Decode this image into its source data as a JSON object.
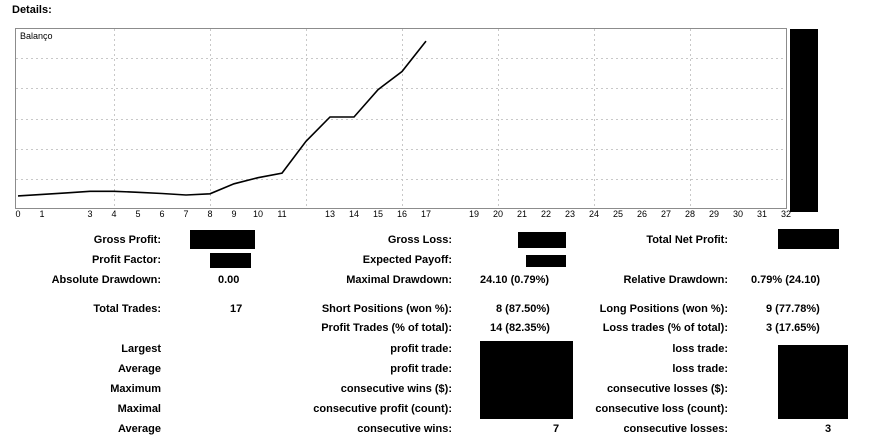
{
  "header": {
    "title": "Details:"
  },
  "chart": {
    "legend": "Balanço",
    "x_ticks": [
      "0",
      "1",
      "3",
      "4",
      "5",
      "6",
      "7",
      "8",
      "9",
      "10",
      "11",
      "13",
      "14",
      "15",
      "16",
      "17",
      "19",
      "20",
      "21",
      "22",
      "23",
      "24",
      "25",
      "26",
      "27",
      "28",
      "29",
      "30",
      "31",
      "32"
    ]
  },
  "chart_data": {
    "type": "line",
    "title": "",
    "legend": [
      "Balanço"
    ],
    "x_label_positions": [
      0,
      1,
      3,
      4,
      5,
      6,
      7,
      8,
      9,
      10,
      11,
      13,
      14,
      15,
      16,
      17,
      19,
      20,
      21,
      22,
      23,
      24,
      25,
      26,
      27,
      28,
      29,
      30,
      31,
      32
    ],
    "xlim": [
      0,
      32
    ],
    "grid": true,
    "series": [
      {
        "name": "Balanço",
        "x": [
          0,
          1,
          2,
          3,
          4,
          5,
          6,
          7,
          8,
          9,
          10,
          11,
          12,
          13,
          14,
          15,
          16,
          17
        ],
        "y": [
          0,
          0.5,
          1,
          1.5,
          1.5,
          1.2,
          0.8,
          0.3,
          0.7,
          4,
          6,
          7.5,
          18,
          26,
          26,
          35,
          41,
          51
        ]
      }
    ],
    "ylim": [
      -3,
      54
    ]
  },
  "stats": {
    "gross_profit_label": "Gross Profit:",
    "profit_factor_label": "Profit Factor:",
    "absolute_drawdown_label": "Absolute Drawdown:",
    "absolute_drawdown_value": "0.00",
    "total_trades_label": "Total Trades:",
    "total_trades_value": "17",
    "largest_label": "Largest",
    "average_label": "Average",
    "maximum_label": "Maximum",
    "maximal_label": "Maximal",
    "average2_label": "Average",
    "gross_loss_label": "Gross Loss:",
    "expected_payoff_label": "Expected Payoff:",
    "maximal_drawdown_label": "Maximal Drawdown:",
    "maximal_drawdown_value": "24.10 (0.79%)",
    "short_positions_label": "Short Positions (won %):",
    "short_positions_value": "8 (87.50%)",
    "profit_trades_label": "Profit Trades (% of total):",
    "profit_trades_value": "14 (82.35%)",
    "profit_trade_label": "profit trade:",
    "profit_trade2_label": "profit trade:",
    "consecutive_wins_money_label": "consecutive wins ($):",
    "consecutive_profit_count_label": "consecutive profit (count):",
    "consecutive_wins_label": "consecutive wins:",
    "consecutive_wins_value": "7",
    "total_net_profit_label": "Total Net Profit:",
    "relative_drawdown_label": "Relative Drawdown:",
    "relative_drawdown_value": "0.79% (24.10)",
    "long_positions_label": "Long Positions (won %):",
    "long_positions_value": "9 (77.78%)",
    "loss_trades_label": "Loss trades (% of total):",
    "loss_trades_value": "3 (17.65%)",
    "loss_trade_label": "loss trade:",
    "loss_trade2_label": "loss trade:",
    "consecutive_losses_money_label": "consecutive losses ($):",
    "consecutive_loss_count_label": "consecutive loss (count):",
    "consecutive_losses_label": "consecutive losses:",
    "consecutive_losses_value": "3"
  },
  "colors": {
    "redaction": "#000000",
    "grid": "#c8c8c8",
    "frame": "#8c8c8c",
    "line": "#000000"
  }
}
